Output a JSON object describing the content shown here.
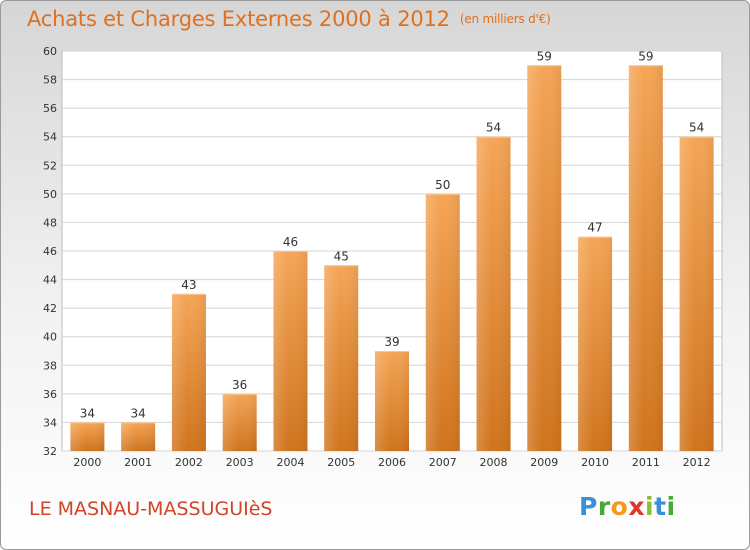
{
  "header": {
    "title": "Achats et Charges Externes 2000 à 2012",
    "unit": "(en milliers d'€)"
  },
  "footer": {
    "commune": "LE MASNAU-MASSUGUIèS",
    "brand": "Proxiti"
  },
  "colors": {
    "bar_top": "#f5a556",
    "bar_bottom": "#d0741d",
    "title": "#e0701d",
    "commune": "#d2432a",
    "plot_bg": "#ffffff",
    "grid": "#d4d4d4"
  },
  "chart_data": {
    "type": "bar",
    "title": "Achats et Charges Externes 2000 à 2012",
    "xlabel": "",
    "ylabel": "",
    "categories": [
      "2000",
      "2001",
      "2002",
      "2003",
      "2004",
      "2005",
      "2006",
      "2007",
      "2008",
      "2009",
      "2010",
      "2011",
      "2012"
    ],
    "values": [
      34,
      34,
      43,
      36,
      46,
      45,
      39,
      50,
      54,
      59,
      47,
      59,
      54
    ],
    "ylim": [
      32,
      60
    ],
    "yticks": [
      32,
      34,
      36,
      38,
      40,
      42,
      44,
      46,
      48,
      50,
      52,
      54,
      56,
      58,
      60
    ],
    "grid": true,
    "legend": "none",
    "data_labels": true
  }
}
